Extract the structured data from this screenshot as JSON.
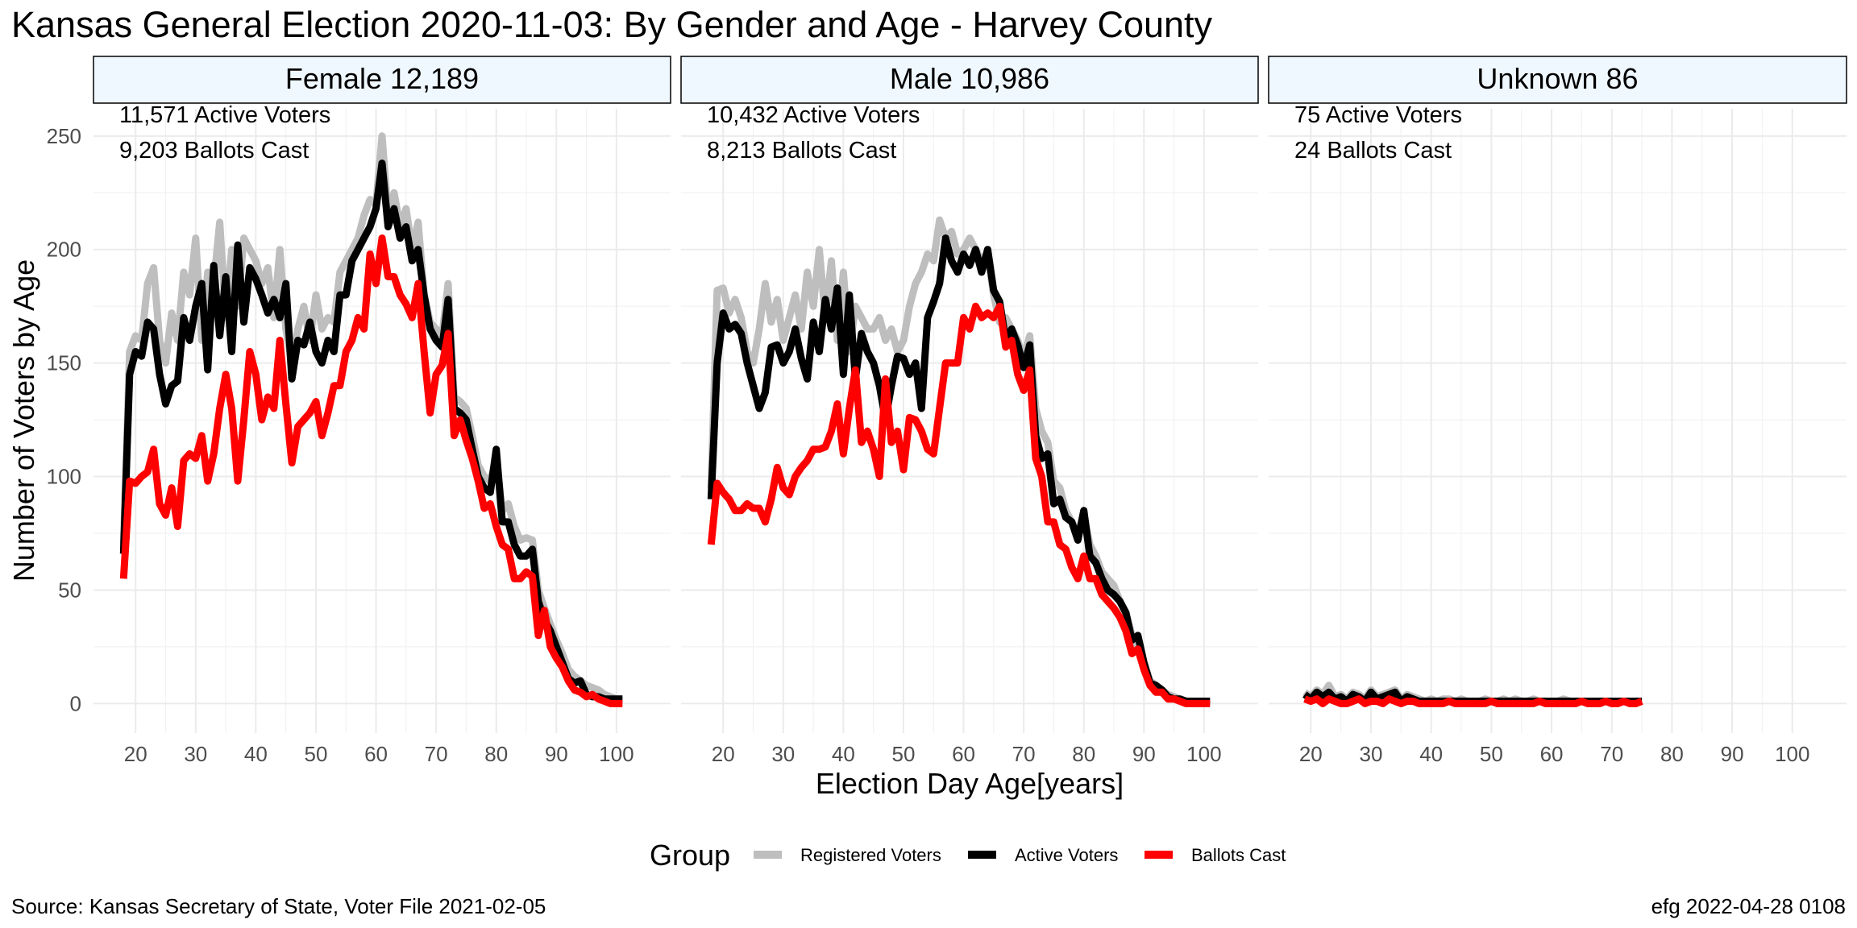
{
  "chart_data": {
    "type": "line",
    "title": "Kansas General Election 2020-11-03:  By Gender and Age - Harvey County",
    "xlabel": "Election Day Age[years]",
    "ylabel": "Number of Voters by Age",
    "xlim": [
      13,
      109
    ],
    "ylim": [
      -13,
      262
    ],
    "x_ticks": [
      20,
      30,
      40,
      50,
      60,
      70,
      80,
      90,
      100
    ],
    "y_ticks": [
      0,
      50,
      100,
      150,
      200,
      250
    ],
    "grid": true,
    "legend": {
      "title": "Group",
      "placement": "bottom",
      "entries": [
        {
          "name": "Registered Voters",
          "color": "#bebebe"
        },
        {
          "name": "Active Voters",
          "color": "#000000"
        },
        {
          "name": "Ballots Cast",
          "color": "#ff0000"
        }
      ]
    },
    "caption_left": "Source:  Kansas Secretary of State, Voter File  2021-02-05",
    "caption_right": "efg 2022-04-28 0108",
    "panels": [
      {
        "strip": "Female 12,189",
        "annotations": [
          "11,571 Active Voters",
          "9,203 Ballots Cast"
        ],
        "x_start": 18,
        "series": [
          {
            "name": "Registered Voters",
            "color": "#bebebe",
            "values": [
              70,
              155,
              162,
              160,
              185,
              192,
              160,
              150,
              172,
              160,
              190,
              180,
              205,
              160,
              190,
              185,
              212,
              170,
              200,
              175,
              205,
              200,
              195,
              185,
              192,
              170,
              200,
              165,
              150,
              165,
              175,
              160,
              180,
              165,
              170,
              168,
              190,
              195,
              200,
              205,
              215,
              222,
              220,
              250,
              215,
              225,
              210,
              218,
              200,
              212,
              180,
              168,
              165,
              162,
              185,
              135,
              133,
              130,
              118,
              105,
              100,
              98,
              108,
              85,
              88,
              78,
              72,
              73,
              72,
              50,
              42,
              35,
              28,
              22,
              15,
              12,
              10,
              8,
              7,
              6,
              4,
              3,
              2,
              2
            ]
          },
          {
            "name": "Active Voters",
            "color": "#000000",
            "values": [
              66,
              145,
              155,
              153,
              168,
              165,
              145,
              132,
              140,
              142,
              170,
              160,
              175,
              185,
              147,
              193,
              162,
              188,
              155,
              202,
              168,
              192,
              187,
              180,
              172,
              178,
              170,
              185,
              143,
              160,
              158,
              168,
              155,
              150,
              160,
              155,
              180,
              180,
              195,
              200,
              205,
              210,
              218,
              238,
              210,
              218,
              205,
              210,
              195,
              200,
              180,
              165,
              160,
              157,
              178,
              130,
              128,
              125,
              112,
              100,
              95,
              93,
              112,
              80,
              80,
              70,
              65,
              65,
              68,
              45,
              37,
              32,
              25,
              18,
              11,
              9,
              10,
              4,
              3,
              3,
              2,
              2,
              2,
              2
            ]
          },
          {
            "name": "Ballots Cast",
            "color": "#ff0000",
            "values": [
              55,
              98,
              97,
              100,
              102,
              112,
              88,
              83,
              95,
              78,
              107,
              110,
              108,
              118,
              98,
              110,
              130,
              145,
              130,
              98,
              125,
              155,
              145,
              125,
              135,
              130,
              160,
              132,
              106,
              122,
              125,
              128,
              133,
              118,
              128,
              140,
              140,
              155,
              160,
              170,
              165,
              198,
              185,
              205,
              188,
              188,
              180,
              176,
              170,
              185,
              155,
              128,
              145,
              149,
              163,
              118,
              125,
              116,
              108,
              98,
              86,
              88,
              78,
              70,
              68,
              55,
              55,
              58,
              56,
              30,
              41,
              25,
              20,
              16,
              10,
              6,
              5,
              3,
              4,
              2,
              1,
              0,
              0,
              0
            ]
          }
        ]
      },
      {
        "strip": "Male 10,986",
        "annotations": [
          "10,432 Active Voters",
          "8,213 Ballots Cast"
        ],
        "x_start": 18,
        "series": [
          {
            "name": "Registered Voters",
            "color": "#bebebe",
            "values": [
              95,
              182,
              183,
              172,
              178,
              170,
              155,
              150,
              165,
              185,
              168,
              178,
              160,
              170,
              180,
              165,
              190,
              175,
              200,
              170,
              195,
              160,
              190,
              155,
              175,
              170,
              165,
              165,
              170,
              160,
              165,
              155,
              160,
              175,
              185,
              190,
              198,
              195,
              213,
              205,
              208,
              198,
              200,
              205,
              200,
              195,
              198,
              180,
              168,
              170,
              165,
              160,
              152,
              162,
              130,
              120,
              115,
              98,
              95,
              85,
              80,
              75,
              83,
              70,
              65,
              58,
              55,
              52,
              45,
              40,
              30,
              25,
              18,
              10,
              8,
              6,
              4,
              3,
              2,
              1,
              1,
              1,
              1,
              1
            ]
          },
          {
            "name": "Active Voters",
            "color": "#000000",
            "values": [
              90,
              150,
              172,
              165,
              167,
              163,
              150,
              140,
              130,
              137,
              157,
              158,
              150,
              155,
              165,
              152,
              143,
              168,
              155,
              178,
              165,
              183,
              145,
              180,
              143,
              163,
              155,
              150,
              140,
              125,
              140,
              153,
              152,
              145,
              150,
              130,
              170,
              177,
              185,
              205,
              195,
              190,
              198,
              193,
              200,
              190,
              200,
              182,
              177,
              160,
              165,
              158,
              148,
              158,
              118,
              108,
              110,
              88,
              90,
              82,
              80,
              72,
              85,
              65,
              62,
              55,
              50,
              48,
              45,
              40,
              28,
              30,
              18,
              9,
              8,
              6,
              3,
              2,
              2,
              1,
              1,
              1,
              1,
              1
            ]
          },
          {
            "name": "Ballots Cast",
            "color": "#ff0000",
            "values": [
              70,
              97,
              93,
              90,
              85,
              85,
              88,
              86,
              86,
              80,
              90,
              104,
              95,
              92,
              100,
              104,
              107,
              112,
              112,
              113,
              120,
              132,
              110,
              130,
              147,
              115,
              120,
              112,
              100,
              143,
              115,
              120,
              103,
              126,
              125,
              120,
              112,
              110,
              130,
              150,
              150,
              150,
              170,
              165,
              175,
              170,
              172,
              170,
              175,
              157,
              160,
              145,
              138,
              147,
              108,
              100,
              80,
              80,
              70,
              68,
              60,
              55,
              65,
              55,
              55,
              48,
              45,
              42,
              38,
              32,
              22,
              24,
              15,
              8,
              5,
              5,
              2,
              2,
              1,
              0,
              0,
              0,
              0,
              0
            ]
          }
        ]
      },
      {
        "strip": "Unknown 86",
        "annotations": [
          "75 Active Voters",
          "24 Ballots Cast"
        ],
        "x_start": 19,
        "series": [
          {
            "name": "Registered Voters",
            "color": "#bebebe",
            "values": [
              5,
              3,
              6,
              4,
              8,
              3,
              4,
              2,
              5,
              4,
              2,
              6,
              3,
              4,
              5,
              6,
              2,
              4,
              3,
              2,
              1,
              2,
              1,
              2,
              2,
              1,
              2,
              1,
              1,
              1,
              2,
              1,
              1,
              2,
              1,
              2,
              1,
              1,
              2,
              1,
              1,
              1,
              1,
              2,
              1,
              1,
              1,
              1,
              1,
              1,
              1,
              1,
              1,
              1,
              1,
              1,
              1
            ]
          },
          {
            "name": "Active Voters",
            "color": "#000000",
            "values": [
              4,
              2,
              5,
              3,
              5,
              2,
              3,
              1,
              4,
              3,
              1,
              5,
              2,
              3,
              4,
              5,
              1,
              3,
              2,
              1,
              1,
              1,
              1,
              1,
              1,
              1,
              1,
              1,
              1,
              1,
              1,
              1,
              1,
              1,
              1,
              1,
              1,
              1,
              1,
              1,
              1,
              1,
              1,
              1,
              1,
              1,
              1,
              1,
              1,
              1,
              1,
              1,
              1,
              1,
              1,
              1,
              1
            ]
          },
          {
            "name": "Ballots Cast",
            "color": "#ff0000",
            "values": [
              2,
              1,
              2,
              0,
              2,
              1,
              0,
              0,
              1,
              2,
              0,
              1,
              1,
              0,
              2,
              1,
              0,
              1,
              1,
              0,
              0,
              0,
              0,
              0,
              1,
              0,
              0,
              0,
              0,
              0,
              0,
              1,
              0,
              0,
              0,
              0,
              0,
              0,
              0,
              1,
              0,
              0,
              0,
              0,
              0,
              0,
              1,
              0,
              0,
              0,
              1,
              0,
              0,
              1,
              0,
              0,
              1
            ]
          }
        ]
      }
    ]
  }
}
